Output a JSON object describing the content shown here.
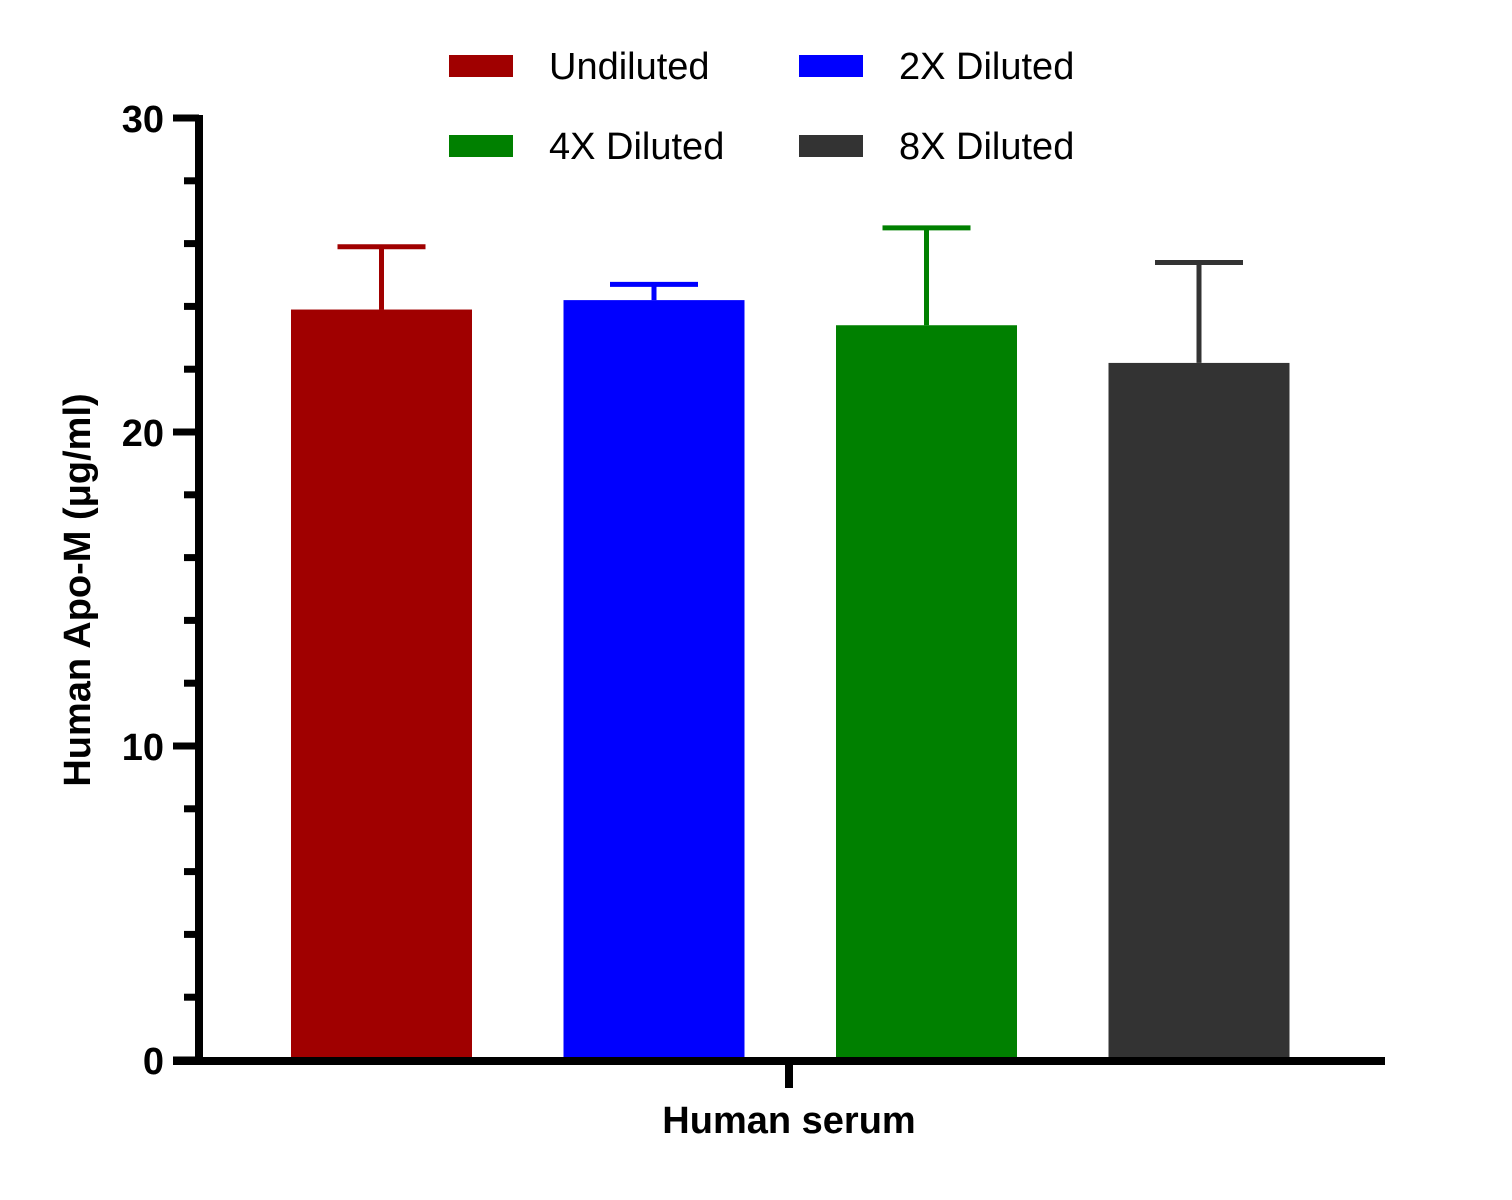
{
  "chart_data": {
    "type": "bar",
    "categories": [
      "Human serum"
    ],
    "xlabel": "Human serum",
    "ylabel": "Human Apo-M (μg/ml)",
    "ylim": [
      0,
      30
    ],
    "yticks": [
      0,
      10,
      20,
      30
    ],
    "minor_ticks_per_major": 5,
    "grid": false,
    "legend_position": "top",
    "series": [
      {
        "name": "Undiluted",
        "values": [
          23.9
        ],
        "error": [
          2.0
        ],
        "color": "#a00000"
      },
      {
        "name": "2X Diluted",
        "values": [
          24.2
        ],
        "error": [
          0.5
        ],
        "color": "#0000ff"
      },
      {
        "name": "4X Diluted",
        "values": [
          23.4
        ],
        "error": [
          3.1
        ],
        "color": "#008000"
      },
      {
        "name": "8X Diluted",
        "values": [
          22.2
        ],
        "error": [
          3.2
        ],
        "color": "#333333"
      }
    ]
  }
}
